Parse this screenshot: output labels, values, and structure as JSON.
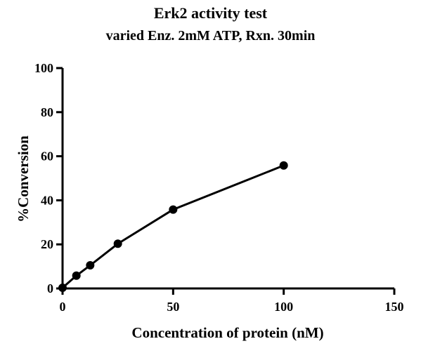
{
  "chart_data": {
    "type": "line",
    "title": "Erk2 activity test",
    "subtitle": "varied Enz. 2mM ATP, Rxn. 30min",
    "xlabel": "Concentration of protein (nM)",
    "ylabel": "%Conversion",
    "xlim": [
      0,
      150
    ],
    "ylim": [
      0,
      100
    ],
    "xticks": [
      0,
      50,
      100,
      150
    ],
    "yticks": [
      0,
      20,
      40,
      60,
      80,
      100
    ],
    "grid": false,
    "series": [
      {
        "x": [
          0,
          6.25,
          12.5,
          25,
          50,
          100
        ],
        "y": [
          0.3,
          5.8,
          10.5,
          20.3,
          35.8,
          55.8
        ],
        "color": "#000000",
        "marker": "circle"
      }
    ]
  }
}
